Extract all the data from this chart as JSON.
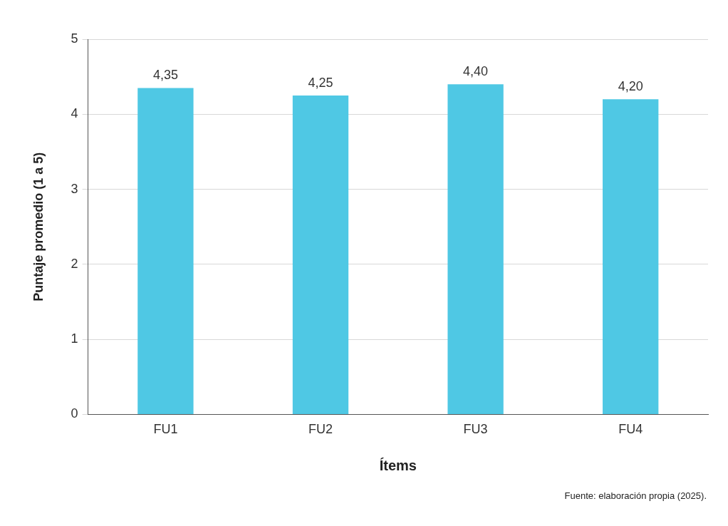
{
  "chart_data": {
    "type": "bar",
    "xlabel": "Ítems",
    "ylabel": "Puntaje promedio (1 a 5)",
    "categories": [
      "FU1",
      "FU2",
      "FU3",
      "FU4"
    ],
    "values": [
      4.35,
      4.25,
      4.4,
      4.2
    ],
    "value_labels": [
      "4,35",
      "4,25",
      "4,40",
      "4,20"
    ],
    "color": "#4fc8e4",
    "ylim": [
      0,
      5
    ],
    "yticks": [
      0,
      1,
      2,
      3,
      4,
      5
    ],
    "grid": "y",
    "annotations": [
      "Fuente: elaboración propia (2025)."
    ]
  }
}
